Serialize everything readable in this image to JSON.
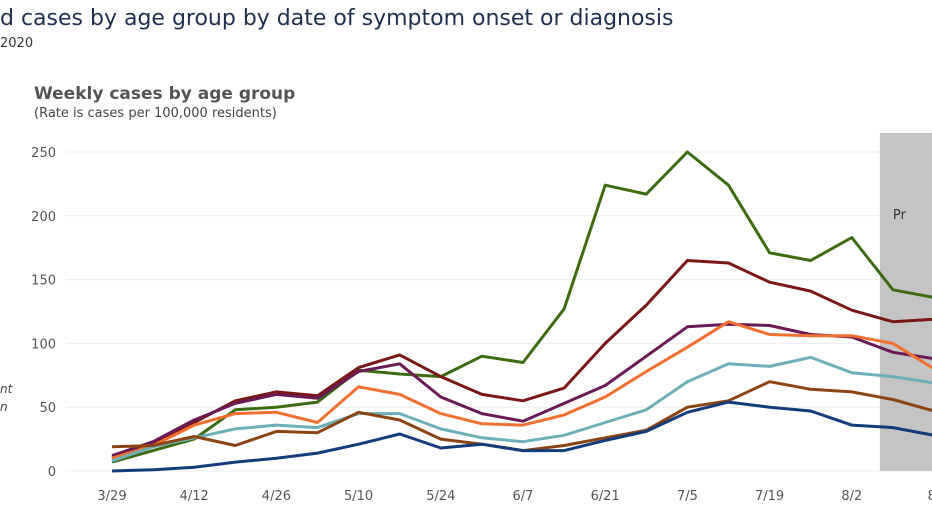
{
  "header": {
    "title": "d cases by age group by date of symptom onset or diagnosis",
    "date": "2020"
  },
  "side_labels": [
    "nt",
    "n"
  ],
  "chart_data": {
    "type": "line",
    "title": "Weekly cases by age group",
    "subtitle": "(Rate is cases per 100,000 residents)",
    "xlabel": "",
    "ylabel": "",
    "x": [
      "3/29",
      "4/5",
      "4/12",
      "4/19",
      "4/26",
      "5/3",
      "5/10",
      "5/17",
      "5/24",
      "5/31",
      "6/7",
      "6/14",
      "6/21",
      "6/28",
      "7/5",
      "7/12",
      "7/19",
      "7/26",
      "8/2",
      "8/9",
      "8/16"
    ],
    "x_tick_labels": [
      "3/29",
      "4/12",
      "4/26",
      "5/10",
      "5/24",
      "6/7",
      "6/21",
      "7/5",
      "7/19",
      "8/2",
      "8/"
    ],
    "y_ticks": [
      0,
      50,
      100,
      150,
      200,
      250
    ],
    "ylim": [
      0,
      250
    ],
    "grid": true,
    "preliminary_label": "Pr",
    "preliminary_from": "8/9",
    "series": [
      {
        "color": "#3d6b12",
        "values": [
          7,
          16,
          25,
          48,
          50,
          54,
          79,
          76,
          74,
          90,
          85,
          127,
          224,
          217,
          250,
          224,
          171,
          165,
          183,
          142,
          136
        ]
      },
      {
        "color": "#7a1818",
        "values": [
          10,
          22,
          38,
          55,
          62,
          59,
          81,
          91,
          74,
          60,
          55,
          65,
          100,
          130,
          165,
          163,
          148,
          141,
          126,
          117,
          119
        ]
      },
      {
        "color": "#6a1a55",
        "values": [
          12,
          23,
          40,
          53,
          60,
          57,
          78,
          84,
          58,
          45,
          39,
          53,
          67,
          90,
          113,
          115,
          114,
          107,
          105,
          93,
          88
        ]
      },
      {
        "color": "#f07032",
        "values": [
          10,
          20,
          36,
          45,
          46,
          38,
          66,
          60,
          45,
          37,
          36,
          44,
          58,
          78,
          97,
          117,
          107,
          106,
          106,
          100,
          80
        ]
      },
      {
        "color": "#6fb0b8",
        "values": [
          8,
          19,
          26,
          33,
          36,
          34,
          45,
          45,
          33,
          26,
          23,
          28,
          38,
          48,
          70,
          84,
          82,
          89,
          77,
          74,
          69
        ]
      },
      {
        "color": "#8b4514",
        "values": [
          19,
          20,
          27,
          20,
          31,
          30,
          46,
          40,
          25,
          21,
          16,
          20,
          26,
          32,
          50,
          55,
          70,
          64,
          62,
          56,
          47
        ]
      },
      {
        "color": "#143c7a",
        "values": [
          0,
          1,
          3,
          7,
          10,
          14,
          21,
          29,
          18,
          21,
          16,
          16,
          24,
          31,
          46,
          54,
          50,
          47,
          36,
          34,
          28
        ]
      }
    ]
  }
}
